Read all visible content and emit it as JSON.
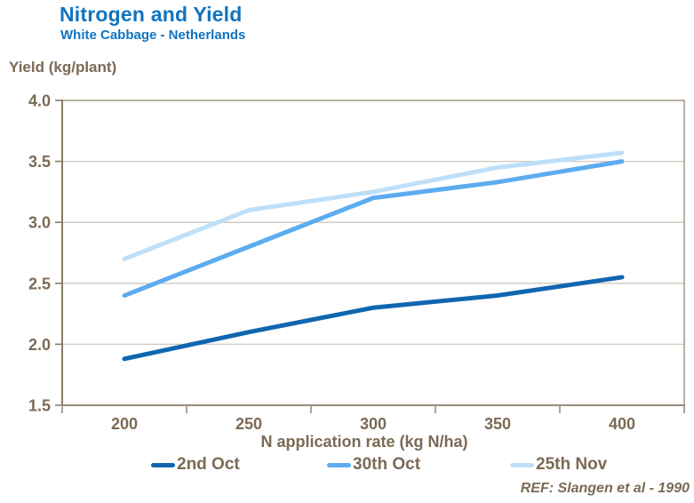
{
  "header": {
    "title": "Nitrogen and Yield",
    "subtitle": "White Cabbage - Netherlands"
  },
  "footer": {
    "ref": "REF: Slangen et al - 1990"
  },
  "colors": {
    "title_blue": "#1173BF",
    "axis_text": "#7B6A55",
    "grid_line": "#CFC8BE",
    "plot_border": "#A89D8F",
    "y_axis_line": "#8A7C67",
    "x_axis_line": "#9A8D7C"
  },
  "chart_data": {
    "type": "line",
    "title": "Nitrogen and Yield",
    "subtitle": "White Cabbage - Netherlands",
    "xlabel": "N application rate (kg N/ha)",
    "ylabel": "Yield (kg/plant)",
    "categories": [
      200,
      250,
      300,
      350,
      400
    ],
    "x_tick_labels": [
      "200",
      "250",
      "300",
      "350",
      "400"
    ],
    "y_ticks": [
      1.5,
      2.0,
      2.5,
      3.0,
      3.5,
      4.0
    ],
    "y_tick_labels": [
      "1.5",
      "2.0",
      "2.5",
      "3.0",
      "3.5",
      "4.0"
    ],
    "ylim": [
      1.5,
      4.0
    ],
    "grid": "horizontal",
    "legend_position": "bottom",
    "series": [
      {
        "name": "2nd Oct",
        "color": "#1066B0",
        "values": [
          1.88,
          2.1,
          2.3,
          2.4,
          2.55
        ]
      },
      {
        "name": "30th Oct",
        "color": "#5CACEF",
        "values": [
          2.4,
          2.8,
          3.2,
          3.33,
          3.5
        ]
      },
      {
        "name": "25th Nov",
        "color": "#BFDFF8",
        "values": [
          2.7,
          3.1,
          3.25,
          3.45,
          3.57
        ]
      }
    ],
    "ref": "REF: Slangen et al - 1990"
  }
}
